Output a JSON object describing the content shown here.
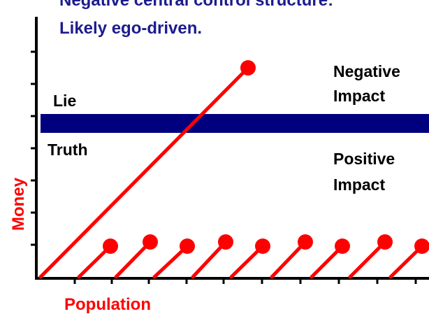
{
  "title": [
    "Negative central control structure:",
    "Likely ego-driven."
  ],
  "band_labels": {
    "above": "Lie",
    "below": "Truth"
  },
  "impact_labels": {
    "negative": [
      "Negative",
      "Impact"
    ],
    "positive": [
      "Positive",
      "Impact"
    ]
  },
  "axes": {
    "y_label": "Money",
    "x_label": "Population"
  }
}
